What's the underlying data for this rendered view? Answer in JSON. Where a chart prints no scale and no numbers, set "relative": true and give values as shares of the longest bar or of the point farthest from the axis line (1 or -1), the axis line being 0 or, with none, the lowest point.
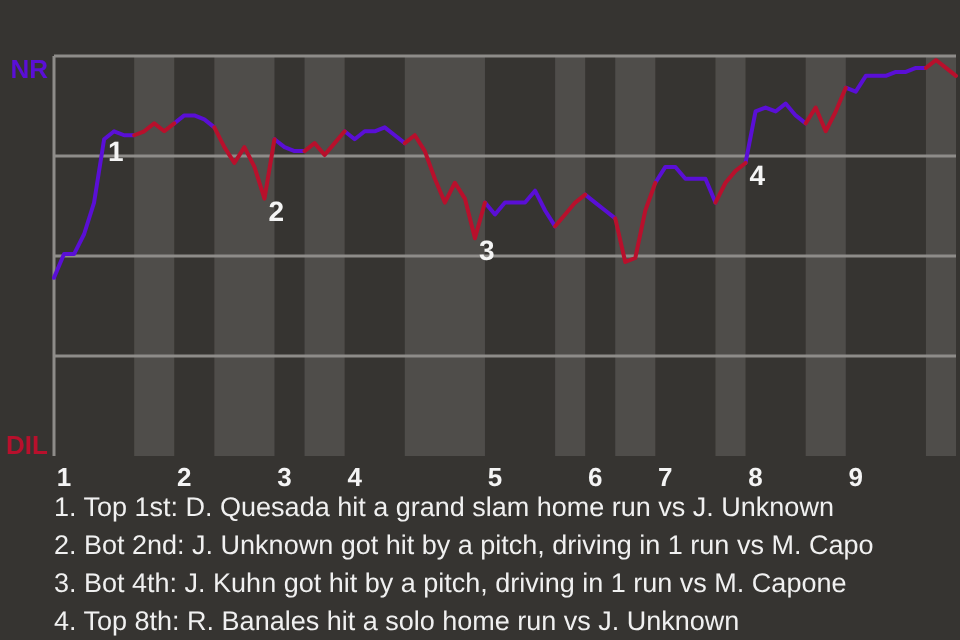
{
  "chart_data": {
    "type": "line",
    "relative": true,
    "grid": "y",
    "marker": "none",
    "line_style": "solid",
    "legend": "left",
    "categories": [
      null,
      "1",
      null,
      null,
      null,
      null,
      null,
      null,
      null,
      null,
      null,
      null,
      null,
      "2",
      null,
      null,
      null,
      null,
      null,
      null,
      null,
      null,
      null,
      "3",
      null,
      null,
      null,
      null,
      null,
      null,
      "4",
      null,
      null,
      null,
      null,
      null,
      null,
      null,
      null,
      null,
      null,
      null,
      null,
      null,
      "5",
      null,
      null,
      null,
      null,
      null,
      null,
      null,
      null,
      null,
      "6",
      null,
      null,
      null,
      null,
      null,
      null,
      "7",
      null,
      null,
      null,
      null,
      null,
      null,
      null,
      null,
      "8",
      null,
      null,
      null,
      null,
      null,
      null,
      null,
      null,
      null,
      "9",
      null,
      null,
      null,
      null,
      null,
      null,
      null,
      null,
      null,
      null
    ],
    "series": [
      {
        "name": "NR",
        "color": "#5a0fd6",
        "values": [
          0.45,
          0.51,
          0.51,
          0.56,
          0.64,
          0.8,
          0.82,
          0.81,
          0.81,
          null,
          null,
          null,
          0.84,
          0.86,
          0.86,
          0.85,
          0.83,
          null,
          null,
          null,
          null,
          null,
          0.8,
          0.78,
          0.77,
          0.77,
          null,
          null,
          null,
          0.82,
          0.8,
          0.82,
          0.82,
          0.83,
          0.81,
          0.79,
          null,
          null,
          null,
          null,
          null,
          null,
          null,
          0.64,
          0.61,
          0.64,
          0.64,
          0.64,
          0.67,
          0.62,
          0.58,
          null,
          null,
          0.66,
          0.64,
          0.62,
          0.6,
          null,
          null,
          null,
          0.69,
          0.73,
          0.73,
          0.7,
          0.7,
          0.7,
          0.64,
          null,
          null,
          0.74,
          0.87,
          0.88,
          0.87,
          0.89,
          0.86,
          0.84,
          null,
          null,
          null,
          0.93,
          0.92,
          0.96,
          0.96,
          0.96,
          0.97,
          0.97,
          0.98,
          0.98,
          null,
          null,
          null
        ]
      },
      {
        "name": "DIL",
        "color": "#b8102c",
        "values": [
          null,
          null,
          null,
          null,
          null,
          null,
          null,
          null,
          0.81,
          0.82,
          0.84,
          0.82,
          0.84,
          null,
          null,
          null,
          0.83,
          0.78,
          0.74,
          0.78,
          0.73,
          0.65,
          0.8,
          null,
          null,
          0.77,
          0.79,
          0.76,
          0.79,
          0.82,
          null,
          null,
          null,
          null,
          null,
          0.79,
          0.81,
          0.77,
          0.7,
          0.64,
          0.69,
          0.65,
          0.55,
          0.64,
          null,
          null,
          null,
          null,
          null,
          null,
          0.58,
          0.61,
          0.64,
          0.66,
          null,
          null,
          0.6,
          0.49,
          0.5,
          0.62,
          0.69,
          null,
          null,
          null,
          null,
          null,
          0.64,
          0.69,
          0.72,
          0.74,
          null,
          null,
          null,
          null,
          null,
          0.84,
          0.88,
          0.82,
          0.87,
          0.93,
          null,
          null,
          null,
          null,
          null,
          null,
          null,
          0.98,
          1,
          0.98,
          0.96
        ]
      }
    ],
    "annotations": [
      {
        "text": "1",
        "y": 0.8
      },
      {
        "text": "2",
        "y": 0.65
      },
      {
        "text": "3",
        "y": 0.55
      },
      {
        "text": "4",
        "y": 0.74
      },
      "1. Top 1st: D. Quesada hit a grand slam home run vs J. Unknown",
      "2. Bot 2nd: J. Unknown got hit by a pitch, driving in 1 run vs M. Capo",
      "3. Bot 4th: J. Kuhn got hit by a pitch, driving in 1 run vs M. Capone",
      "4. Top 8th: R. Banales hit a solo home run vs J. Unknown"
    ]
  }
}
